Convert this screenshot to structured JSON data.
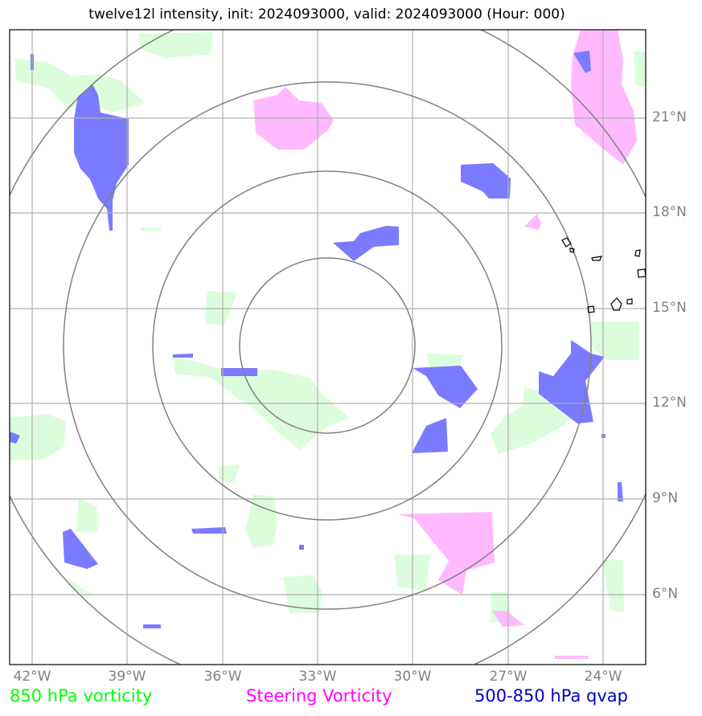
{
  "title": "twelve12l intensity, init: 2024093000, valid: 2024093000 (Hour: 000)",
  "axes": {
    "lon_labels": [
      "42°W",
      "39°W",
      "36°W",
      "33°W",
      "30°W",
      "27°W",
      "24°W"
    ],
    "lat_labels": [
      "21°N",
      "18°N",
      "15°N",
      "12°N",
      "9°N",
      "6°N"
    ]
  },
  "legend": {
    "vort850": {
      "label": "850 hPa vorticity",
      "color": "#00ff00"
    },
    "steering": {
      "label": "Steering Vorticity",
      "color": "#ff00ff"
    },
    "qvap": {
      "label": "500-850 hPa qvap",
      "color": "#0000cc"
    }
  },
  "colors": {
    "green_fill": "#dcfddc",
    "pink_fill": "#ffbaff",
    "blue_fill": "#7b7bff",
    "grid": "#b0b0b0",
    "rings": "#808080",
    "coast": "#000000"
  }
}
